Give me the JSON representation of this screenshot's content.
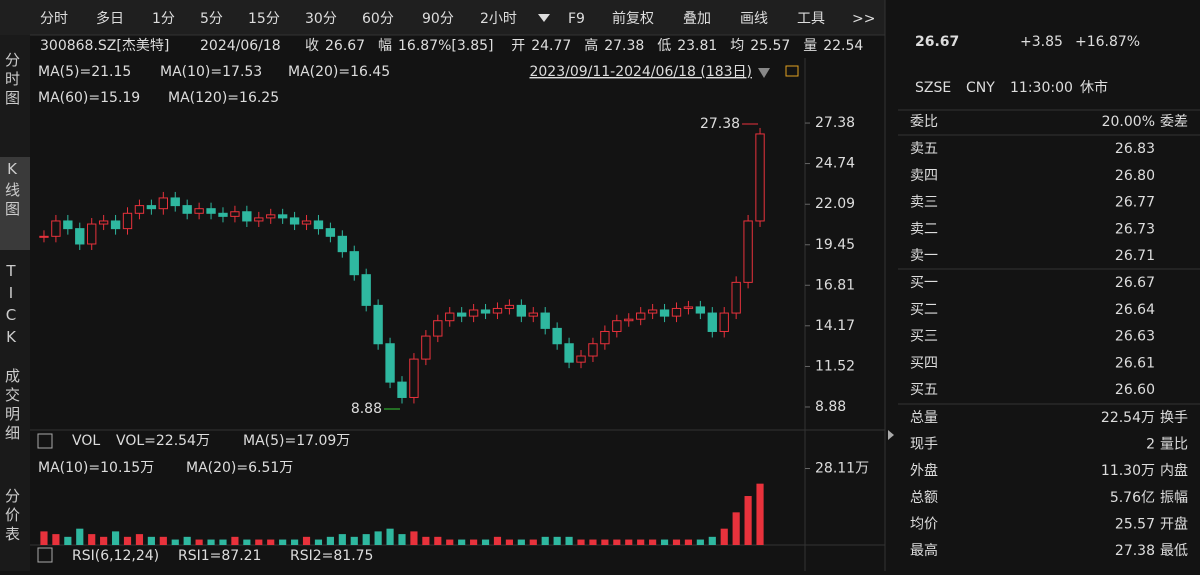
{
  "toolbar": {
    "tabs": [
      "分时",
      "多日",
      "1分",
      "5分",
      "15分",
      "30分",
      "60分",
      "90分",
      "2小时",
      "F9",
      "前复权",
      "叠加",
      "画线",
      "工具",
      ">>"
    ]
  },
  "sidebar": [
    "分时图",
    "K线图",
    "TICK",
    "成交明细",
    "分价表"
  ],
  "info": {
    "code": "300868.SZ[杰美特]",
    "date": "2024/06/18",
    "fields": [
      {
        "label": "收",
        "value": "26.67"
      },
      {
        "label": "幅",
        "value": "16.87%[3.85]"
      },
      {
        "label": "开",
        "value": "24.77"
      },
      {
        "label": "高",
        "value": "27.38"
      },
      {
        "label": "低",
        "value": "23.81"
      },
      {
        "label": "均",
        "value": "25.57"
      },
      {
        "label": "量",
        "value": "22.54"
      }
    ]
  },
  "price_chart": {
    "type": "candlestick",
    "range_label": "2023/09/11-2024/06/18 (183日)",
    "ma_labels": [
      {
        "text": "MA(5)=21.15",
        "color": "#ff9a3c"
      },
      {
        "text": "MA(10)=17.53",
        "color": "#f5e142"
      },
      {
        "text": "MA(20)=16.45",
        "color": "#e040e0"
      },
      {
        "text": "MA(60)=15.19",
        "color": "#35c835"
      },
      {
        "text": "MA(120)=16.25",
        "color": "#7fe3f0"
      }
    ],
    "max_label": "27.38",
    "min_label": "8.88",
    "ylim": [
      7.38,
      28.23
    ],
    "yticks": [
      27.38,
      24.74,
      22.09,
      19.45,
      16.81,
      14.17,
      11.52,
      8.88
    ],
    "closes": [
      20,
      21,
      20.5,
      19.5,
      20.8,
      21,
      20.5,
      21.5,
      22,
      21.8,
      22.5,
      22,
      21.5,
      21.8,
      21.5,
      21.3,
      21.6,
      21,
      21.2,
      21.4,
      21.2,
      20.8,
      21,
      20.5,
      20,
      19,
      17.5,
      15.5,
      13,
      10.5,
      9.5,
      12,
      13.5,
      14.5,
      15,
      14.8,
      15.2,
      15,
      15.3,
      15.5,
      14.8,
      15,
      14,
      13,
      11.8,
      12.2,
      13,
      13.8,
      14.5,
      14.6,
      15,
      15.2,
      14.8,
      15.3,
      15.4,
      15,
      13.8,
      15,
      17,
      21,
      26.67
    ],
    "up_color": "#e8323c",
    "down_color": "#2fb8a0"
  },
  "volume_chart": {
    "title": "VOL",
    "labels": [
      {
        "text": "VOL=22.54万",
        "color": "#dddddd"
      },
      {
        "text": "MA(5)=17.09万",
        "color": "#dddddd"
      },
      {
        "text": "MA(10)=10.15万",
        "color": "#ff9a3c"
      },
      {
        "text": "MA(20)=6.51万",
        "color": "#e040e0"
      }
    ],
    "ylim": [
      0,
      30.5
    ],
    "yticks": [
      {
        "value": 28.11,
        "label": "28.11万"
      }
    ],
    "values": [
      5,
      4,
      3,
      6,
      4,
      3,
      5,
      3,
      4,
      3,
      3,
      2,
      3,
      2,
      2,
      2,
      3,
      2,
      2,
      2,
      2,
      2,
      3,
      2,
      3,
      4,
      3,
      4,
      5,
      6,
      4,
      5,
      3,
      3,
      2,
      2,
      2,
      2,
      3,
      2,
      2,
      2,
      3,
      3,
      3,
      2,
      2,
      2,
      2,
      2,
      2,
      2,
      2,
      2,
      2,
      2,
      3,
      6,
      12,
      18,
      22.54
    ]
  },
  "rsi": {
    "labels": [
      {
        "text": "RSI(6,12,24)",
        "color": "#dddddd"
      },
      {
        "text": "RSI1=87.21",
        "color": "#dddddd"
      },
      {
        "text": "RSI2=81.75",
        "color": "#ff9a3c"
      }
    ]
  },
  "quote": {
    "price": "26.67",
    "change": "+3.85",
    "pct": "+16.87%",
    "meta": [
      "SZSE",
      "CNY",
      "11:30:00",
      "休市"
    ]
  },
  "book": {
    "ratio_label": "委比",
    "ratio": "20.00%",
    "diff_label": "委差",
    "rows": [
      [
        "卖五",
        "26.83"
      ],
      [
        "卖四",
        "26.80"
      ],
      [
        "卖三",
        "26.77"
      ],
      [
        "卖二",
        "26.73"
      ],
      [
        "卖一",
        "26.71"
      ],
      [
        "买一",
        "26.67"
      ],
      [
        "买二",
        "26.64"
      ],
      [
        "买三",
        "26.63"
      ],
      [
        "买四",
        "26.61"
      ],
      [
        "买五",
        "26.60"
      ]
    ]
  },
  "stats": [
    [
      "总量",
      "22.54万",
      "换手"
    ],
    [
      "现手",
      "2",
      "量比"
    ],
    [
      "外盘",
      "11.30万",
      "内盘"
    ],
    [
      "总额",
      "5.76亿",
      "振幅"
    ],
    [
      "均价",
      "25.57",
      "开盘"
    ],
    [
      "最高",
      "27.38",
      "最低"
    ]
  ]
}
